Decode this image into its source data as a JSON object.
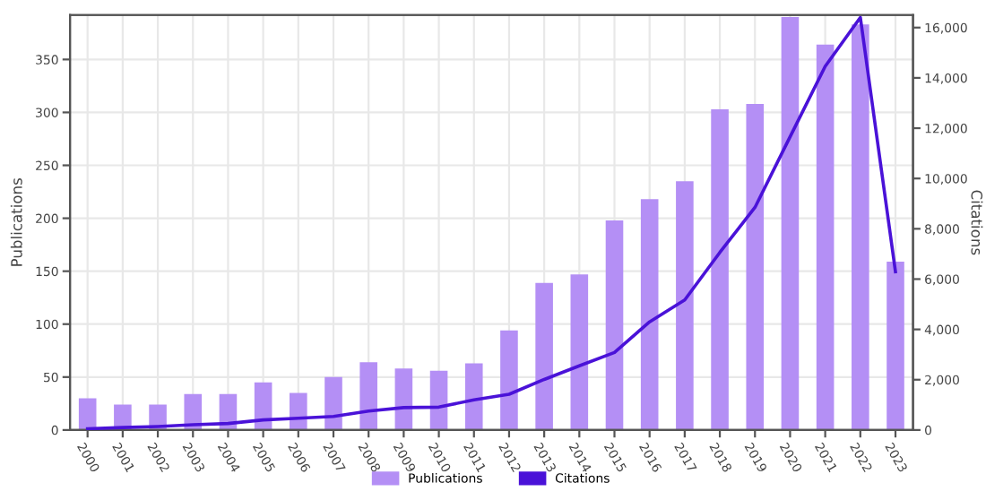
{
  "chart_data": {
    "type": "bar",
    "ylabel": "Publications",
    "y2label": "Citations",
    "categories": [
      "2000",
      "2001",
      "2002",
      "2003",
      "2004",
      "2005",
      "2006",
      "2007",
      "2008",
      "2009",
      "2010",
      "2011",
      "2012",
      "2013",
      "2014",
      "2015",
      "2016",
      "2017",
      "2018",
      "2019",
      "2020",
      "2021",
      "2022",
      "2023"
    ],
    "series": [
      {
        "name": "Publications",
        "color": "#b48ff5",
        "values": [
          30,
          24,
          24,
          34,
          34,
          45,
          35,
          50,
          64,
          58,
          56,
          63,
          94,
          139,
          147,
          198,
          218,
          235,
          303,
          308,
          390,
          364,
          383,
          159
        ]
      },
      {
        "name": "Citations",
        "type": "line",
        "axis": "y2",
        "color": "#4a12d8",
        "values": [
          50,
          100,
          140,
          210,
          260,
          400,
          470,
          540,
          750,
          890,
          910,
          1200,
          1420,
          2010,
          2550,
          3080,
          4300,
          5170,
          7060,
          8850,
          11660,
          14460,
          16400,
          6290
        ]
      }
    ],
    "ylim": [
      0,
      392
    ],
    "yticks": [
      0,
      50,
      100,
      150,
      200,
      250,
      300,
      350
    ],
    "y2lim": [
      0,
      16500
    ],
    "y2ticks": [
      0,
      {
        "value": 2000,
        "label": "2,000"
      },
      {
        "value": 4000,
        "label": "4,000"
      },
      {
        "value": 6000,
        "label": "6,000"
      },
      {
        "value": 8000,
        "label": "8,000"
      },
      {
        "value": 10000,
        "label": "10,000"
      },
      {
        "value": 12000,
        "label": "12,000"
      },
      {
        "value": 14000,
        "label": "14,000"
      },
      {
        "value": 16000,
        "label": "16,000"
      }
    ],
    "grid": true,
    "legend": "bottom",
    "marker": "none",
    "line_style": "solid"
  }
}
